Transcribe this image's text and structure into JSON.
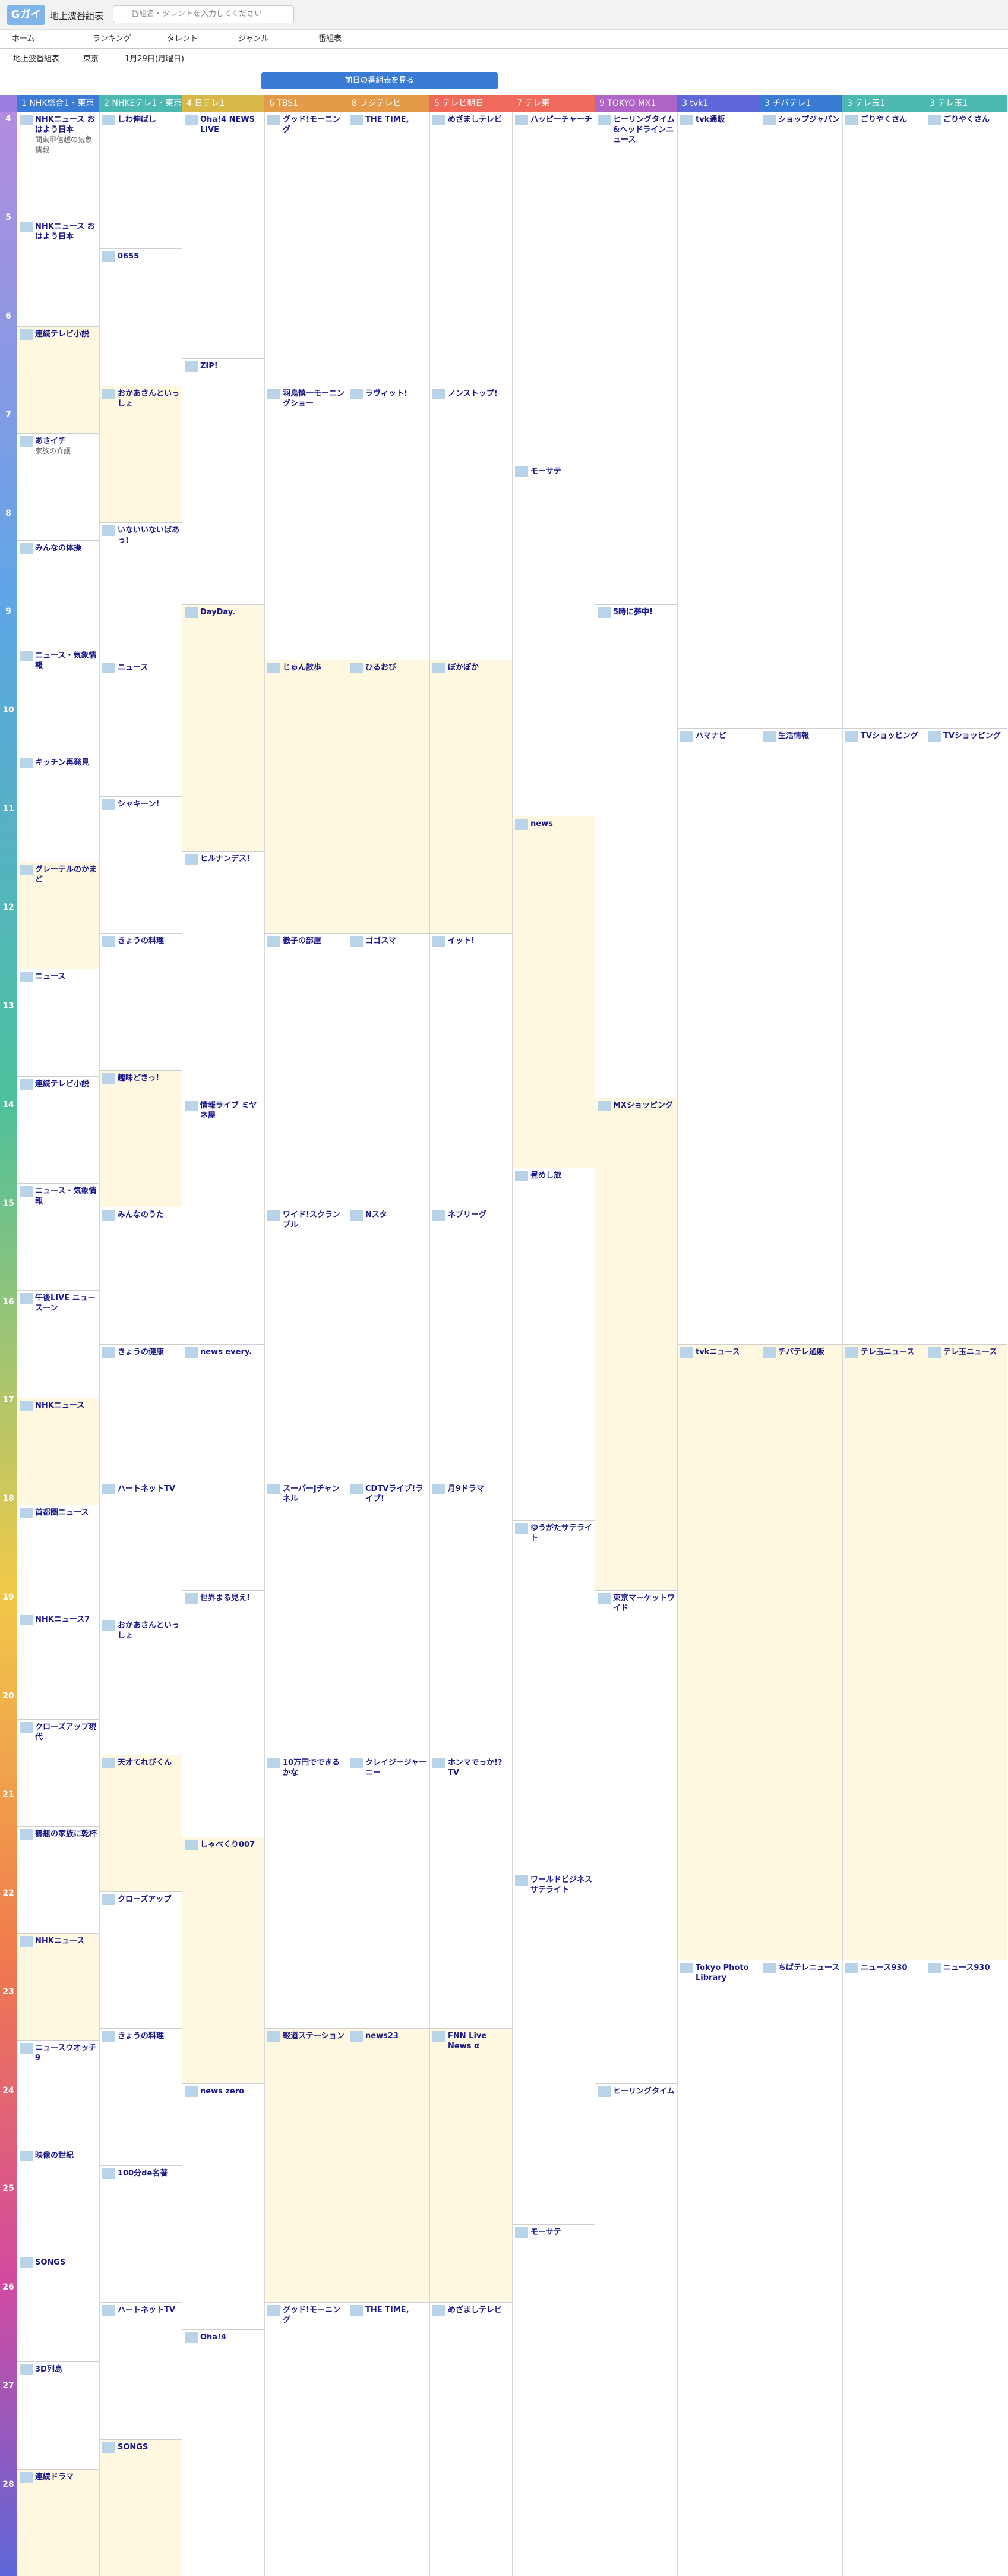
{
  "app": {
    "logo": "Gガイド",
    "site": "地上波番組表",
    "search_placeholder": "番組名・タレントを入力してください"
  },
  "nav": [
    "ホーム",
    "ランキング",
    "タレント",
    "ジャンル",
    "番組表"
  ],
  "filter": {
    "type": "地上波番組表",
    "area": "東京",
    "date": "1月29日(月曜日)"
  },
  "prev_button": "前日の番組表を見る",
  "channels": [
    {
      "name": "1 NHK総合1・東京",
      "color": "#3a7bd5"
    },
    {
      "name": "2 NHKEテレ1・東京",
      "color": "#4cb8b0"
    },
    {
      "name": "4 日テレ1",
      "color": "#d9b84a"
    },
    {
      "name": "6 TBS1",
      "color": "#e39b4a"
    },
    {
      "name": "8 フジテレビ",
      "color": "#e39b4a"
    },
    {
      "name": "5 テレビ朝日",
      "color": "#ef6a5a"
    },
    {
      "name": "7 テレ東",
      "color": "#ef6a5a"
    },
    {
      "name": "9 TOKYO MX1",
      "color": "#b064c6"
    },
    {
      "name": "3 tvk1",
      "color": "#5e68d8"
    },
    {
      "name": "3 チバテレ1",
      "color": "#3a7bd5"
    },
    {
      "name": "3 テレ玉1",
      "color": "#4cb8b0"
    },
    {
      "name": "3 テレ玉1",
      "color": "#4cb8b0"
    }
  ],
  "hours": [
    "4",
    "5",
    "6",
    "7",
    "8",
    "9",
    "10",
    "11",
    "12",
    "13",
    "14",
    "15",
    "16",
    "17",
    "18",
    "19",
    "20",
    "21",
    "22",
    "23",
    "24",
    "25",
    "26",
    "27",
    "28"
  ],
  "columns": [
    [
      {
        "t": "NHKニュース おはよう日本",
        "d": "関東甲信越の気象情報"
      },
      {
        "t": "NHKニュース おはよう日本",
        "d": ""
      },
      {
        "t": "連続テレビ小説",
        "d": ""
      },
      {
        "t": "あさイチ",
        "d": "家族の介護"
      },
      {
        "t": "みんなの体操",
        "d": ""
      },
      {
        "t": "ニュース・気象情報",
        "d": ""
      },
      {
        "t": "キッチン再発見",
        "d": ""
      },
      {
        "t": "グレーテルのかまど",
        "d": ""
      },
      {
        "t": "ニュース",
        "d": ""
      },
      {
        "t": "連続テレビ小説",
        "d": ""
      },
      {
        "t": "ニュース・気象情報",
        "d": ""
      },
      {
        "t": "午後LIVE ニュースーン",
        "d": ""
      },
      {
        "t": "NHKニュース",
        "d": ""
      },
      {
        "t": "首都圏ニュース",
        "d": ""
      },
      {
        "t": "NHKニュース7",
        "d": ""
      },
      {
        "t": "クローズアップ現代",
        "d": ""
      },
      {
        "t": "鶴瓶の家族に乾杯",
        "d": ""
      },
      {
        "t": "NHKニュース",
        "d": ""
      },
      {
        "t": "ニュースウオッチ9",
        "d": ""
      },
      {
        "t": "映像の世紀",
        "d": ""
      },
      {
        "t": "SONGS",
        "d": ""
      },
      {
        "t": "3D列島",
        "d": ""
      },
      {
        "t": "連続ドラマ",
        "d": ""
      }
    ],
    [
      {
        "t": "しわ伸ばし",
        "d": ""
      },
      {
        "t": "0655",
        "d": ""
      },
      {
        "t": "おかあさんといっしょ",
        "d": ""
      },
      {
        "t": "いないいないばあっ!",
        "d": ""
      },
      {
        "t": "ニュース",
        "d": ""
      },
      {
        "t": "シャキーン!",
        "d": ""
      },
      {
        "t": "きょうの料理",
        "d": ""
      },
      {
        "t": "趣味どきっ!",
        "d": ""
      },
      {
        "t": "みんなのうた",
        "d": ""
      },
      {
        "t": "きょうの健康",
        "d": ""
      },
      {
        "t": "ハートネットTV",
        "d": ""
      },
      {
        "t": "おかあさんといっしょ",
        "d": ""
      },
      {
        "t": "天才てれびくん",
        "d": ""
      },
      {
        "t": "クローズアップ",
        "d": ""
      },
      {
        "t": "きょうの料理",
        "d": ""
      },
      {
        "t": "100分de名著",
        "d": ""
      },
      {
        "t": "ハートネットTV",
        "d": ""
      },
      {
        "t": "SONGS",
        "d": ""
      }
    ],
    [
      {
        "t": "Oha!4 NEWS LIVE",
        "d": ""
      },
      {
        "t": "ZIP!",
        "d": ""
      },
      {
        "t": "DayDay.",
        "d": ""
      },
      {
        "t": "ヒルナンデス!",
        "d": ""
      },
      {
        "t": "情報ライブ ミヤネ屋",
        "d": ""
      },
      {
        "t": "news every.",
        "d": ""
      },
      {
        "t": "世界まる見え!",
        "d": ""
      },
      {
        "t": "しゃべくり007",
        "d": ""
      },
      {
        "t": "news zero",
        "d": ""
      },
      {
        "t": "Oha!4",
        "d": ""
      }
    ],
    [
      {
        "t": "グッド!モーニング",
        "d": ""
      },
      {
        "t": "羽鳥慎一モーニングショー",
        "d": ""
      },
      {
        "t": "じゅん散歩",
        "d": ""
      },
      {
        "t": "徹子の部屋",
        "d": ""
      },
      {
        "t": "ワイド!スクランブル",
        "d": ""
      },
      {
        "t": "スーパーJチャンネル",
        "d": ""
      },
      {
        "t": "10万円でできるかな",
        "d": ""
      },
      {
        "t": "報道ステーション",
        "d": ""
      },
      {
        "t": "グッド!モーニング",
        "d": ""
      }
    ],
    [
      {
        "t": "THE TIME,",
        "d": ""
      },
      {
        "t": "ラヴィット!",
        "d": ""
      },
      {
        "t": "ひるおび",
        "d": ""
      },
      {
        "t": "ゴゴスマ",
        "d": ""
      },
      {
        "t": "Nスタ",
        "d": ""
      },
      {
        "t": "CDTVライブ!ライブ!",
        "d": ""
      },
      {
        "t": "クレイジージャーニー",
        "d": ""
      },
      {
        "t": "news23",
        "d": ""
      },
      {
        "t": "THE TIME,",
        "d": ""
      }
    ],
    [
      {
        "t": "めざましテレビ",
        "d": ""
      },
      {
        "t": "ノンストップ!",
        "d": ""
      },
      {
        "t": "ぽかぽか",
        "d": ""
      },
      {
        "t": "イット!",
        "d": ""
      },
      {
        "t": "ネプリーグ",
        "d": ""
      },
      {
        "t": "月9ドラマ",
        "d": ""
      },
      {
        "t": "ホンマでっか!?TV",
        "d": ""
      },
      {
        "t": "FNN Live News α",
        "d": ""
      },
      {
        "t": "めざましテレビ",
        "d": ""
      }
    ],
    [
      {
        "t": "ハッピーチャーチ",
        "d": ""
      },
      {
        "t": "モーサテ",
        "d": ""
      },
      {
        "t": "news",
        "d": ""
      },
      {
        "t": "昼めし旅",
        "d": ""
      },
      {
        "t": "ゆうがたサテライト",
        "d": ""
      },
      {
        "t": "ワールドビジネスサテライト",
        "d": ""
      },
      {
        "t": "モーサテ",
        "d": ""
      }
    ],
    [
      {
        "t": "ヒーリングタイム&ヘッドラインニュース",
        "d": ""
      },
      {
        "t": "5時に夢中!",
        "d": ""
      },
      {
        "t": "MXショッピング",
        "d": ""
      },
      {
        "t": "東京マーケットワイド",
        "d": ""
      },
      {
        "t": "ヒーリングタイム",
        "d": ""
      }
    ],
    [
      {
        "t": "tvk通販",
        "d": ""
      },
      {
        "t": "ハマナビ",
        "d": ""
      },
      {
        "t": "tvkニュース",
        "d": ""
      },
      {
        "t": "Tokyo Photo Library",
        "d": ""
      }
    ],
    [
      {
        "t": "ショップジャパン",
        "d": ""
      },
      {
        "t": "生活情報",
        "d": ""
      },
      {
        "t": "チバテレ通販",
        "d": ""
      },
      {
        "t": "ちばテレニュース",
        "d": ""
      }
    ],
    [
      {
        "t": "ごりやくさん",
        "d": ""
      },
      {
        "t": "TVショッピング",
        "d": ""
      },
      {
        "t": "テレ玉ニュース",
        "d": ""
      },
      {
        "t": "ニュース930",
        "d": ""
      }
    ],
    [
      {
        "t": "ごりやくさん",
        "d": ""
      },
      {
        "t": "TVショッピング",
        "d": ""
      },
      {
        "t": "テレ玉ニュース",
        "d": ""
      },
      {
        "t": "ニュース930",
        "d": ""
      }
    ]
  ]
}
